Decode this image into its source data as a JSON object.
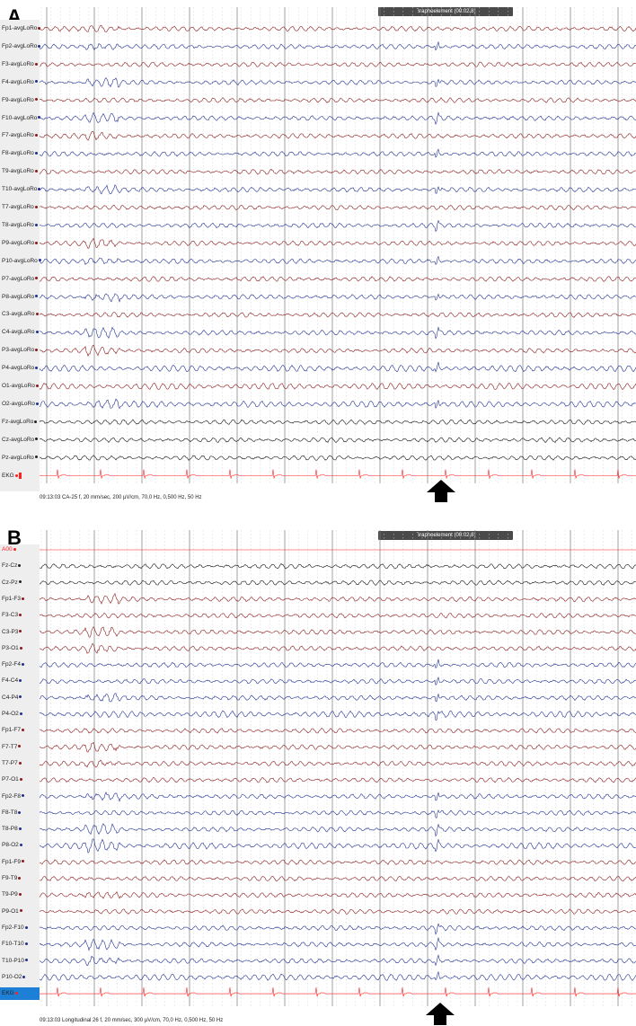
{
  "colors": {
    "red": "#8b1a1a",
    "blue": "#1f2f8f",
    "black": "#111111",
    "ekg": "#ff2020"
  },
  "panels": [
    {
      "letter": "A",
      "graphoelement": "Graphoelement (00:02,8)",
      "status": "09:13:03 CA-25 f, 20 mm/sec, 200 µV/cm, 70,0 Hz, 0,500 Hz, 50 Hz",
      "channels": [
        {
          "label": "Fp1-avgLoRo",
          "color": "red"
        },
        {
          "label": "Fp2-avgLoRo",
          "color": "blue"
        },
        {
          "label": "F3-avgLoRo",
          "color": "red"
        },
        {
          "label": "F4-avgLoRo",
          "color": "blue"
        },
        {
          "label": "F9-avgLoRo",
          "color": "red"
        },
        {
          "label": "F10-avgLoRo",
          "color": "blue"
        },
        {
          "label": "F7-avgLoRo",
          "color": "red"
        },
        {
          "label": "F8-avgLoRo",
          "color": "blue"
        },
        {
          "label": "T9-avgLoRo",
          "color": "red"
        },
        {
          "label": "T10-avgLoRo",
          "color": "blue"
        },
        {
          "label": "T7-avgLoRo",
          "color": "red"
        },
        {
          "label": "T8-avgLoRo",
          "color": "blue"
        },
        {
          "label": "P9-avgLoRo",
          "color": "red"
        },
        {
          "label": "P10-avgLoRo",
          "color": "blue"
        },
        {
          "label": "P7-avgLoRo",
          "color": "red"
        },
        {
          "label": "P8-avgLoRo",
          "color": "blue"
        },
        {
          "label": "C3-avgLoRo",
          "color": "red"
        },
        {
          "label": "C4-avgLoRo",
          "color": "blue"
        },
        {
          "label": "P3-avgLoRo",
          "color": "red"
        },
        {
          "label": "P4-avgLoRo",
          "color": "blue"
        },
        {
          "label": "O1-avgLoRo",
          "color": "red"
        },
        {
          "label": "O2-avgLoRo",
          "color": "blue"
        },
        {
          "label": "Fz-avgLoRo",
          "color": "black"
        },
        {
          "label": "Cz-avgLoRo",
          "color": "black"
        },
        {
          "label": "Pz-avgLoRo",
          "color": "black"
        },
        {
          "label": "EKG",
          "color": "ekg"
        }
      ]
    },
    {
      "letter": "B",
      "graphoelement": "Graphoelement (00:02,8)",
      "status": "09:13:03 Longitudinal 26 f, 20 mm/sec, 300 µV/cm, 70,0 Hz, 0,500 Hz, 50 Hz",
      "channels": [
        {
          "label": "A00",
          "color": "ekg"
        },
        {
          "label": "Fz-Cz",
          "color": "black"
        },
        {
          "label": "Cz-Pz",
          "color": "black"
        },
        {
          "label": "Fp1-F3",
          "color": "red"
        },
        {
          "label": "F3-C3",
          "color": "red"
        },
        {
          "label": "C3-P3",
          "color": "red"
        },
        {
          "label": "P3-O1",
          "color": "red"
        },
        {
          "label": "Fp2-F4",
          "color": "blue"
        },
        {
          "label": "F4-C4",
          "color": "blue"
        },
        {
          "label": "C4-P4",
          "color": "blue"
        },
        {
          "label": "P4-O2",
          "color": "blue"
        },
        {
          "label": "Fp1-F7",
          "color": "red"
        },
        {
          "label": "F7-T7",
          "color": "red"
        },
        {
          "label": "T7-P7",
          "color": "red"
        },
        {
          "label": "P7-O1",
          "color": "red"
        },
        {
          "label": "Fp2-F8",
          "color": "blue"
        },
        {
          "label": "F8-T8",
          "color": "blue"
        },
        {
          "label": "T8-P8",
          "color": "blue"
        },
        {
          "label": "P8-O2",
          "color": "blue"
        },
        {
          "label": "Fp1-F9",
          "color": "red"
        },
        {
          "label": "F9-T9",
          "color": "red"
        },
        {
          "label": "T9-P9",
          "color": "red"
        },
        {
          "label": "P9-O1",
          "color": "red"
        },
        {
          "label": "Fp2-F10",
          "color": "blue"
        },
        {
          "label": "F10-T10",
          "color": "blue"
        },
        {
          "label": "T10-P10",
          "color": "blue"
        },
        {
          "label": "P10-O2",
          "color": "blue"
        },
        {
          "label": "EKG",
          "color": "ekg"
        }
      ]
    }
  ],
  "icons": {
    "marker_arrow": "up-arrow-icon"
  }
}
